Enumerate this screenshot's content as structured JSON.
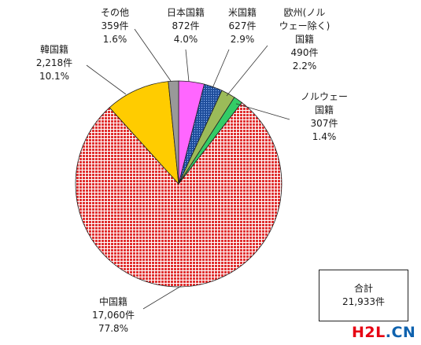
{
  "chart_data": {
    "type": "pie",
    "total_label": "合計",
    "total_value": "21,933件",
    "slices": [
      {
        "key": "japan",
        "lines": [
          "日本国籍"
        ],
        "count": "872件",
        "percent": "4.0%",
        "value": 4.0,
        "color": "#ff66ff",
        "pattern": "solid"
      },
      {
        "key": "us",
        "lines": [
          "米国籍"
        ],
        "count": "627件",
        "percent": "2.9%",
        "value": 2.9,
        "color": "#1f4e9c",
        "pattern": "dots"
      },
      {
        "key": "europe",
        "lines": [
          "欧州(ノル",
          "ウェー除く)",
          "国籍"
        ],
        "count": "490件",
        "percent": "2.2%",
        "value": 2.2,
        "color": "#9bbb59",
        "pattern": "solid"
      },
      {
        "key": "norway",
        "lines": [
          "ノルウェー",
          "国籍"
        ],
        "count": "307件",
        "percent": "1.4%",
        "value": 1.4,
        "color": "#33cc66",
        "pattern": "solid"
      },
      {
        "key": "china",
        "lines": [
          "中国籍"
        ],
        "count": "17,060件",
        "percent": "77.8%",
        "value": 77.8,
        "color": "#e03030",
        "pattern": "grid"
      },
      {
        "key": "korea",
        "lines": [
          "韓国籍"
        ],
        "count": "2,218件",
        "percent": "10.1%",
        "value": 10.1,
        "color": "#ffcc00",
        "pattern": "solid"
      },
      {
        "key": "other",
        "lines": [
          "その他"
        ],
        "count": "359件",
        "percent": "1.6%",
        "value": 1.6,
        "color": "#999999",
        "pattern": "solid"
      }
    ]
  },
  "watermark": {
    "part1": "H2L",
    "part2": ".CN"
  }
}
